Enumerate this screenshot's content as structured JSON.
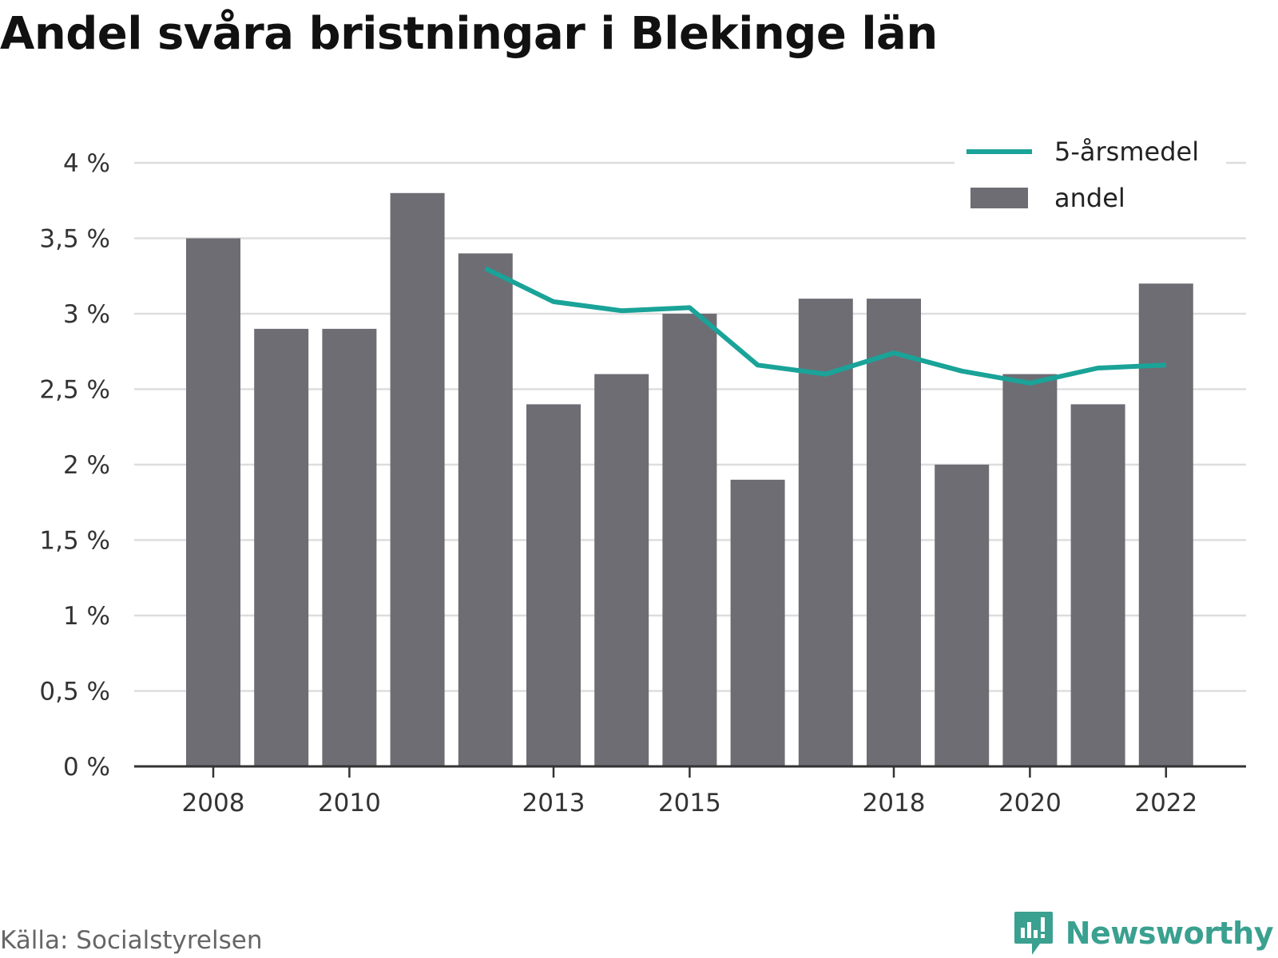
{
  "title": "Andel svåra bristningar i Blekinge län",
  "source": "Källa: Socialstyrelsen",
  "brand": {
    "name": "Newsworthy",
    "icon": "newsworthy-logo-icon",
    "color": "#3aa08f"
  },
  "chart_data": {
    "type": "bar",
    "title": "Andel svåra bristningar i Blekinge län",
    "x": [
      2008,
      2009,
      2010,
      2011,
      2012,
      2013,
      2014,
      2015,
      2016,
      2017,
      2018,
      2019,
      2020,
      2021,
      2022
    ],
    "x_tick_labels": [
      "2008",
      "2010",
      "2013",
      "2015",
      "2018",
      "2020",
      "2022"
    ],
    "y_ticks": [
      0,
      0.5,
      1,
      1.5,
      2,
      2.5,
      3,
      3.5,
      4
    ],
    "y_tick_labels": [
      "0 %",
      "0,5 %",
      "1 %",
      "1,5 %",
      "2 %",
      "2,5 %",
      "3 %",
      "3,5 %",
      "4 %"
    ],
    "ylim": [
      0,
      4
    ],
    "grid": true,
    "legend_position": "top-right",
    "series": [
      {
        "name": "andel",
        "kind": "bar",
        "color": "#6e6d74",
        "values": [
          3.5,
          2.9,
          2.9,
          3.8,
          3.4,
          2.4,
          2.6,
          3.0,
          1.9,
          3.1,
          3.1,
          2.0,
          2.6,
          2.4,
          3.2
        ]
      },
      {
        "name": "5-årsmedel",
        "kind": "line",
        "color": "#1aa398",
        "values": [
          null,
          null,
          null,
          null,
          3.3,
          3.08,
          3.02,
          3.04,
          2.66,
          2.6,
          2.74,
          2.62,
          2.54,
          2.64,
          2.66
        ]
      }
    ],
    "legend": [
      {
        "label": "5-årsmedel",
        "kind": "line",
        "color": "#1aa398"
      },
      {
        "label": "andel",
        "kind": "bar",
        "color": "#6e6d74"
      }
    ]
  }
}
